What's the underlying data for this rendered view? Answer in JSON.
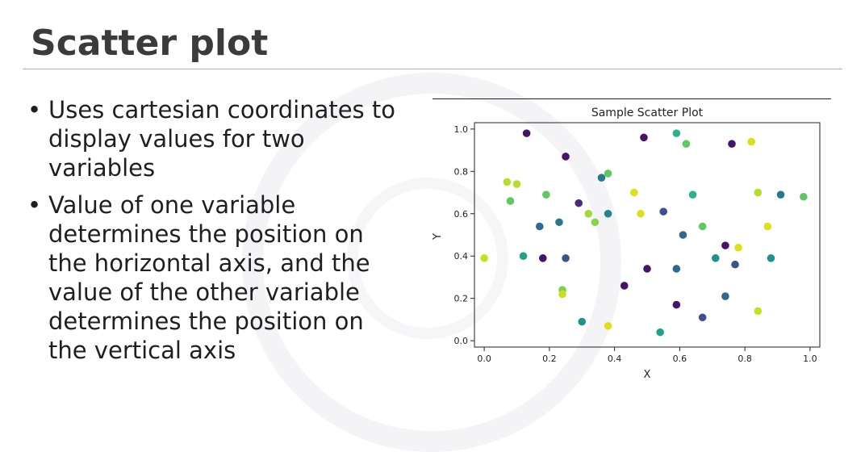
{
  "slide": {
    "title": "Scatter plot",
    "bullets": [
      "Uses cartesian coordinates to display values for two variables",
      "Value of one variable determines the position on the horizontal axis, and the value of the other variable determines the position on the vertical axis"
    ]
  },
  "chart_data": {
    "type": "scatter",
    "title": "Sample Scatter Plot",
    "xlabel": "X",
    "ylabel": "Y",
    "xlim": [
      -0.03,
      1.03
    ],
    "ylim": [
      -0.03,
      1.03
    ],
    "xticks": [
      "0.0",
      "0.2",
      "0.4",
      "0.6",
      "0.8",
      "1.0"
    ],
    "yticks": [
      "0.0",
      "0.2",
      "0.4",
      "0.6",
      "0.8",
      "1.0"
    ],
    "grid": false,
    "points": [
      {
        "x": 0.13,
        "y": 0.98,
        "color": "#46136b"
      },
      {
        "x": 0.25,
        "y": 0.87,
        "color": "#46136b"
      },
      {
        "x": 0.49,
        "y": 0.96,
        "color": "#46136b"
      },
      {
        "x": 0.59,
        "y": 0.98,
        "color": "#2cb28a"
      },
      {
        "x": 0.62,
        "y": 0.93,
        "color": "#5ec962"
      },
      {
        "x": 0.76,
        "y": 0.93,
        "color": "#46136b"
      },
      {
        "x": 0.82,
        "y": 0.94,
        "color": "#d4e21a"
      },
      {
        "x": 0.07,
        "y": 0.75,
        "color": "#b5de2b"
      },
      {
        "x": 0.1,
        "y": 0.74,
        "color": "#b5de2b"
      },
      {
        "x": 0.08,
        "y": 0.66,
        "color": "#5ec962"
      },
      {
        "x": 0.19,
        "y": 0.69,
        "color": "#5ec962"
      },
      {
        "x": 0.36,
        "y": 0.77,
        "color": "#2a788e"
      },
      {
        "x": 0.38,
        "y": 0.79,
        "color": "#5ec962"
      },
      {
        "x": 0.46,
        "y": 0.7,
        "color": "#e0e01a"
      },
      {
        "x": 0.64,
        "y": 0.69,
        "color": "#2cb28a"
      },
      {
        "x": 0.84,
        "y": 0.7,
        "color": "#b5de2b"
      },
      {
        "x": 0.91,
        "y": 0.69,
        "color": "#2a788e"
      },
      {
        "x": 0.98,
        "y": 0.68,
        "color": "#5ec962"
      },
      {
        "x": 0.29,
        "y": 0.65,
        "color": "#472c7a"
      },
      {
        "x": 0.32,
        "y": 0.6,
        "color": "#a0da39"
      },
      {
        "x": 0.34,
        "y": 0.56,
        "color": "#86d549"
      },
      {
        "x": 0.38,
        "y": 0.6,
        "color": "#25848e"
      },
      {
        "x": 0.48,
        "y": 0.6,
        "color": "#e0e01a"
      },
      {
        "x": 0.55,
        "y": 0.61,
        "color": "#3b528b"
      },
      {
        "x": 0.17,
        "y": 0.54,
        "color": "#31688e"
      },
      {
        "x": 0.23,
        "y": 0.56,
        "color": "#2a788e"
      },
      {
        "x": 0.67,
        "y": 0.54,
        "color": "#5ec962"
      },
      {
        "x": 0.61,
        "y": 0.5,
        "color": "#31688e"
      },
      {
        "x": 0.87,
        "y": 0.54,
        "color": "#e0e01a"
      },
      {
        "x": 0.0,
        "y": 0.39,
        "color": "#c8e020"
      },
      {
        "x": 0.12,
        "y": 0.4,
        "color": "#20a386"
      },
      {
        "x": 0.18,
        "y": 0.39,
        "color": "#46136b"
      },
      {
        "x": 0.25,
        "y": 0.39,
        "color": "#3b528b"
      },
      {
        "x": 0.5,
        "y": 0.34,
        "color": "#46136b"
      },
      {
        "x": 0.59,
        "y": 0.34,
        "color": "#31688e"
      },
      {
        "x": 0.71,
        "y": 0.39,
        "color": "#21918c"
      },
      {
        "x": 0.74,
        "y": 0.45,
        "color": "#46136b"
      },
      {
        "x": 0.78,
        "y": 0.44,
        "color": "#e0e01a"
      },
      {
        "x": 0.77,
        "y": 0.36,
        "color": "#3b528b"
      },
      {
        "x": 0.88,
        "y": 0.39,
        "color": "#21918c"
      },
      {
        "x": 0.24,
        "y": 0.24,
        "color": "#7ad151"
      },
      {
        "x": 0.24,
        "y": 0.22,
        "color": "#c8e020"
      },
      {
        "x": 0.43,
        "y": 0.26,
        "color": "#46136b"
      },
      {
        "x": 0.3,
        "y": 0.09,
        "color": "#21918c"
      },
      {
        "x": 0.38,
        "y": 0.07,
        "color": "#e0e01a"
      },
      {
        "x": 0.54,
        "y": 0.04,
        "color": "#20a386"
      },
      {
        "x": 0.59,
        "y": 0.17,
        "color": "#46136b"
      },
      {
        "x": 0.67,
        "y": 0.11,
        "color": "#3b528b"
      },
      {
        "x": 0.74,
        "y": 0.21,
        "color": "#31688e"
      },
      {
        "x": 0.84,
        "y": 0.14,
        "color": "#c8e020"
      }
    ]
  }
}
